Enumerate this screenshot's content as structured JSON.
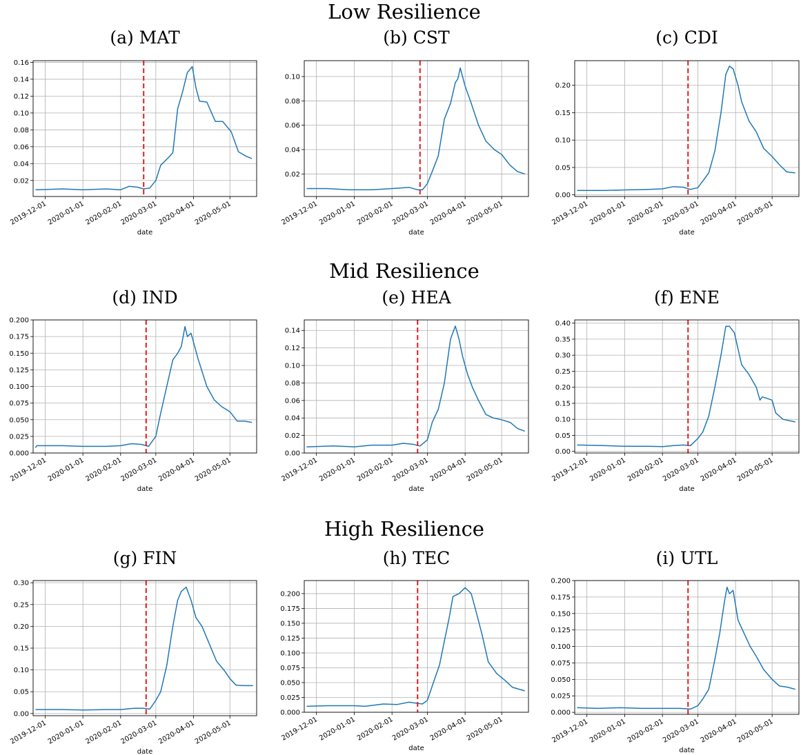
{
  "row_titles": [
    "Low Resilience",
    "Mid Resilience",
    "High Resilience"
  ],
  "colors": {
    "series": "#1f77b4",
    "event_line": "#e41a1c",
    "grid": "#b0b0b0"
  },
  "chart_data": [
    {
      "type": "line",
      "title": "(a) MAT",
      "xlabel": "date",
      "ylabel": "",
      "x_ticks": [
        "2019-12-01",
        "2020-01-01",
        "2020-02-01",
        "2020-03-01",
        "2020-04-01",
        "2020-05-01"
      ],
      "y_ticks": [
        "0.02",
        "0.04",
        "0.06",
        "0.08",
        "0.10",
        "0.12",
        "0.14",
        "0.16"
      ],
      "xlim": [
        "2019-11-21",
        "2020-05-23"
      ],
      "ylim": [
        0.001,
        0.162
      ],
      "grid": true,
      "event_date": "2020-02-20",
      "x": [
        "2019-11-23",
        "2019-12-15",
        "2020-01-01",
        "2020-01-20",
        "2020-02-01",
        "2020-02-08",
        "2020-02-15",
        "2020-02-20",
        "2020-02-25",
        "2020-03-01",
        "2020-03-05",
        "2020-03-12",
        "2020-03-15",
        "2020-03-19",
        "2020-03-23",
        "2020-03-27",
        "2020-03-31",
        "2020-04-03",
        "2020-04-06",
        "2020-04-12",
        "2020-04-19",
        "2020-04-25",
        "2020-05-02",
        "2020-05-08",
        "2020-05-14",
        "2020-05-19"
      ],
      "values": [
        0.009,
        0.01,
        0.009,
        0.01,
        0.009,
        0.013,
        0.012,
        0.01,
        0.011,
        0.02,
        0.038,
        0.048,
        0.053,
        0.105,
        0.125,
        0.148,
        0.155,
        0.13,
        0.114,
        0.113,
        0.09,
        0.09,
        0.078,
        0.054,
        0.049,
        0.046
      ]
    },
    {
      "type": "line",
      "title": "(b) CST",
      "xlabel": "date",
      "ylabel": "",
      "x_ticks": [
        "2019-12-01",
        "2020-01-01",
        "2020-02-01",
        "2020-03-01",
        "2020-04-01",
        "2020-05-01"
      ],
      "y_ticks": [
        "0.02",
        "0.04",
        "0.06",
        "0.08",
        "0.10"
      ],
      "xlim": [
        "2019-11-21",
        "2020-05-23"
      ],
      "ylim": [
        0.0015,
        0.113
      ],
      "grid": true,
      "event_date": "2020-02-24",
      "x": [
        "2019-11-23",
        "2019-12-10",
        "2019-12-28",
        "2020-01-15",
        "2020-02-01",
        "2020-02-15",
        "2020-02-22",
        "2020-02-26",
        "2020-03-01",
        "2020-03-05",
        "2020-03-10",
        "2020-03-15",
        "2020-03-20",
        "2020-03-24",
        "2020-03-26",
        "2020-03-28",
        "2020-04-01",
        "2020-04-06",
        "2020-04-12",
        "2020-04-18",
        "2020-04-25",
        "2020-05-01",
        "2020-05-08",
        "2020-05-14",
        "2020-05-20"
      ],
      "values": [
        0.008,
        0.008,
        0.007,
        0.007,
        0.008,
        0.009,
        0.007,
        0.007,
        0.012,
        0.022,
        0.035,
        0.065,
        0.078,
        0.095,
        0.098,
        0.107,
        0.092,
        0.078,
        0.06,
        0.047,
        0.04,
        0.036,
        0.027,
        0.022,
        0.02
      ]
    },
    {
      "type": "line",
      "title": "(c) CDI",
      "xlabel": "date",
      "ylabel": "",
      "x_ticks": [
        "2019-12-01",
        "2020-01-01",
        "2020-02-01",
        "2020-03-01",
        "2020-04-01",
        "2020-05-01"
      ],
      "y_ticks": [
        "0.00",
        "0.05",
        "0.10",
        "0.15",
        "0.20"
      ],
      "xlim": [
        "2019-11-21",
        "2020-05-23"
      ],
      "ylim": [
        -0.003,
        0.245
      ],
      "grid": true,
      "event_date": "2020-02-22",
      "x": [
        "2019-11-23",
        "2019-12-15",
        "2020-01-01",
        "2020-01-20",
        "2020-02-01",
        "2020-02-10",
        "2020-02-18",
        "2020-02-24",
        "2020-03-01",
        "2020-03-05",
        "2020-03-10",
        "2020-03-15",
        "2020-03-20",
        "2020-03-24",
        "2020-03-27",
        "2020-03-30",
        "2020-04-03",
        "2020-04-06",
        "2020-04-12",
        "2020-04-18",
        "2020-04-24",
        "2020-05-01",
        "2020-05-07",
        "2020-05-13",
        "2020-05-20"
      ],
      "values": [
        0.008,
        0.008,
        0.009,
        0.01,
        0.011,
        0.015,
        0.014,
        0.01,
        0.013,
        0.025,
        0.04,
        0.08,
        0.15,
        0.22,
        0.235,
        0.23,
        0.2,
        0.17,
        0.135,
        0.115,
        0.085,
        0.07,
        0.055,
        0.042,
        0.04
      ]
    },
    {
      "type": "line",
      "title": "(d) IND",
      "xlabel": "date",
      "ylabel": "",
      "x_ticks": [
        "2019-12-01",
        "2020-01-01",
        "2020-02-01",
        "2020-03-01",
        "2020-04-01",
        "2020-05-01"
      ],
      "y_ticks": [
        "0.000",
        "0.025",
        "0.050",
        "0.075",
        "0.100",
        "0.125",
        "0.150",
        "0.175",
        "0.200"
      ],
      "xlim": [
        "2019-11-21",
        "2020-05-23"
      ],
      "ylim": [
        0.0,
        0.2
      ],
      "grid": true,
      "event_date": "2020-02-22",
      "x": [
        "2019-11-23",
        "2019-11-24",
        "2019-12-15",
        "2020-01-01",
        "2020-01-20",
        "2020-02-01",
        "2020-02-10",
        "2020-02-18",
        "2020-02-24",
        "2020-03-01",
        "2020-03-05",
        "2020-03-10",
        "2020-03-15",
        "2020-03-19",
        "2020-03-22",
        "2020-03-25",
        "2020-03-27",
        "2020-03-30",
        "2020-04-05",
        "2020-04-12",
        "2020-04-18",
        "2020-04-24",
        "2020-05-01",
        "2020-05-07",
        "2020-05-13",
        "2020-05-19"
      ],
      "values": [
        0.008,
        0.011,
        0.011,
        0.01,
        0.01,
        0.011,
        0.014,
        0.013,
        0.01,
        0.025,
        0.06,
        0.1,
        0.14,
        0.15,
        0.16,
        0.19,
        0.175,
        0.18,
        0.14,
        0.1,
        0.08,
        0.07,
        0.062,
        0.048,
        0.048,
        0.046
      ]
    },
    {
      "type": "line",
      "title": "(e) HEA",
      "xlabel": "date",
      "ylabel": "",
      "x_ticks": [
        "2019-12-01",
        "2020-01-01",
        "2020-02-01",
        "2020-03-01",
        "2020-04-01",
        "2020-05-01"
      ],
      "y_ticks": [
        "0.00",
        "0.02",
        "0.04",
        "0.06",
        "0.08",
        "0.10",
        "0.12",
        "0.14"
      ],
      "xlim": [
        "2019-11-21",
        "2020-05-23"
      ],
      "ylim": [
        0.0,
        0.152
      ],
      "grid": true,
      "event_date": "2020-02-22",
      "x": [
        "2019-11-23",
        "2019-12-15",
        "2020-01-01",
        "2020-01-15",
        "2020-02-01",
        "2020-02-10",
        "2020-02-18",
        "2020-02-24",
        "2020-03-01",
        "2020-03-05",
        "2020-03-10",
        "2020-03-15",
        "2020-03-20",
        "2020-03-24",
        "2020-03-27",
        "2020-03-30",
        "2020-04-03",
        "2020-04-07",
        "2020-04-12",
        "2020-04-18",
        "2020-04-24",
        "2020-05-01",
        "2020-05-08",
        "2020-05-14",
        "2020-05-20"
      ],
      "values": [
        0.007,
        0.008,
        0.007,
        0.009,
        0.009,
        0.011,
        0.01,
        0.008,
        0.015,
        0.035,
        0.05,
        0.08,
        0.13,
        0.145,
        0.13,
        0.11,
        0.09,
        0.075,
        0.06,
        0.044,
        0.04,
        0.038,
        0.035,
        0.028,
        0.025
      ]
    },
    {
      "type": "line",
      "title": "(f) ENE",
      "xlabel": "date",
      "ylabel": "",
      "x_ticks": [
        "2019-12-01",
        "2020-01-01",
        "2020-02-01",
        "2020-03-01",
        "2020-04-01",
        "2020-05-01"
      ],
      "y_ticks": [
        "0.00",
        "0.05",
        "0.10",
        "0.15",
        "0.20",
        "0.25",
        "0.30",
        "0.35",
        "0.40"
      ],
      "xlim": [
        "2019-11-21",
        "2020-05-23"
      ],
      "ylim": [
        -0.005,
        0.41
      ],
      "grid": true,
      "event_date": "2020-02-22",
      "x": [
        "2019-11-23",
        "2019-12-15",
        "2020-01-01",
        "2020-01-20",
        "2020-02-01",
        "2020-02-10",
        "2020-02-18",
        "2020-02-24",
        "2020-03-01",
        "2020-03-05",
        "2020-03-10",
        "2020-03-15",
        "2020-03-20",
        "2020-03-24",
        "2020-03-27",
        "2020-03-31",
        "2020-04-03",
        "2020-04-06",
        "2020-04-12",
        "2020-04-18",
        "2020-04-21",
        "2020-04-23",
        "2020-05-01",
        "2020-05-04",
        "2020-05-10",
        "2020-05-20"
      ],
      "values": [
        0.02,
        0.018,
        0.016,
        0.016,
        0.015,
        0.018,
        0.02,
        0.018,
        0.04,
        0.06,
        0.11,
        0.2,
        0.3,
        0.39,
        0.39,
        0.37,
        0.32,
        0.27,
        0.24,
        0.2,
        0.16,
        0.17,
        0.16,
        0.12,
        0.1,
        0.092
      ]
    },
    {
      "type": "line",
      "title": "(g) FIN",
      "xlabel": "date",
      "ylabel": "",
      "x_ticks": [
        "2019-12-01",
        "2020-01-01",
        "2020-02-01",
        "2020-03-01",
        "2020-04-01",
        "2020-05-01"
      ],
      "y_ticks": [
        "0.00",
        "0.05",
        "0.10",
        "0.15",
        "0.20",
        "0.25",
        "0.30"
      ],
      "xlim": [
        "2019-11-21",
        "2020-05-23"
      ],
      "ylim": [
        -0.005,
        0.305
      ],
      "grid": true,
      "event_date": "2020-02-22",
      "x": [
        "2019-11-23",
        "2019-12-15",
        "2020-01-01",
        "2020-01-20",
        "2020-02-01",
        "2020-02-12",
        "2020-02-20",
        "2020-02-25",
        "2020-03-01",
        "2020-03-05",
        "2020-03-10",
        "2020-03-15",
        "2020-03-19",
        "2020-03-22",
        "2020-03-26",
        "2020-03-30",
        "2020-04-03",
        "2020-04-08",
        "2020-04-14",
        "2020-04-20",
        "2020-04-26",
        "2020-05-01",
        "2020-05-06",
        "2020-05-12",
        "2020-05-20"
      ],
      "values": [
        0.009,
        0.009,
        0.008,
        0.009,
        0.009,
        0.012,
        0.012,
        0.01,
        0.03,
        0.05,
        0.11,
        0.2,
        0.26,
        0.28,
        0.29,
        0.26,
        0.22,
        0.2,
        0.16,
        0.12,
        0.1,
        0.08,
        0.065,
        0.064,
        0.064
      ]
    },
    {
      "type": "line",
      "title": "(h) TEC",
      "xlabel": "date",
      "ylabel": "",
      "x_ticks": [
        "2019-12-01",
        "2020-01-01",
        "2020-02-01",
        "2020-03-01",
        "2020-04-01",
        "2020-05-01"
      ],
      "y_ticks": [
        "0.000",
        "0.025",
        "0.050",
        "0.075",
        "0.100",
        "0.125",
        "0.150",
        "0.175",
        "0.200"
      ],
      "xlim": [
        "2019-11-21",
        "2020-05-23"
      ],
      "ylim": [
        0.0,
        0.222
      ],
      "grid": true,
      "event_date": "2020-02-22",
      "x": [
        "2019-11-23",
        "2019-12-10",
        "2020-01-01",
        "2020-01-10",
        "2020-01-25",
        "2020-02-05",
        "2020-02-15",
        "2020-02-22",
        "2020-02-26",
        "2020-03-01",
        "2020-03-06",
        "2020-03-11",
        "2020-03-15",
        "2020-03-19",
        "2020-03-22",
        "2020-03-27",
        "2020-04-01",
        "2020-04-06",
        "2020-04-10",
        "2020-04-15",
        "2020-04-20",
        "2020-04-27",
        "2020-05-03",
        "2020-05-10",
        "2020-05-20"
      ],
      "values": [
        0.01,
        0.011,
        0.011,
        0.01,
        0.014,
        0.013,
        0.017,
        0.015,
        0.014,
        0.02,
        0.05,
        0.08,
        0.12,
        0.16,
        0.195,
        0.2,
        0.21,
        0.2,
        0.17,
        0.13,
        0.085,
        0.065,
        0.055,
        0.042,
        0.036
      ]
    },
    {
      "type": "line",
      "title": "(i) UTL",
      "xlabel": "date",
      "ylabel": "",
      "x_ticks": [
        "2019-12-01",
        "2020-01-01",
        "2020-02-01",
        "2020-03-01",
        "2020-04-01",
        "2020-05-01"
      ],
      "y_ticks": [
        "0.000",
        "0.025",
        "0.050",
        "0.075",
        "0.100",
        "0.125",
        "0.150",
        "0.175",
        "0.200"
      ],
      "xlim": [
        "2019-11-21",
        "2020-05-23"
      ],
      "ylim": [
        -0.003,
        0.2
      ],
      "grid": true,
      "event_date": "2020-02-22",
      "x": [
        "2019-11-23",
        "2019-12-10",
        "2019-12-28",
        "2020-01-15",
        "2020-02-01",
        "2020-02-15",
        "2020-02-24",
        "2020-03-01",
        "2020-03-05",
        "2020-03-10",
        "2020-03-15",
        "2020-03-19",
        "2020-03-23",
        "2020-03-25",
        "2020-03-27",
        "2020-03-30",
        "2020-04-03",
        "2020-04-08",
        "2020-04-13",
        "2020-04-18",
        "2020-04-24",
        "2020-05-01",
        "2020-05-07",
        "2020-05-14",
        "2020-05-20"
      ],
      "values": [
        0.007,
        0.006,
        0.007,
        0.006,
        0.006,
        0.006,
        0.005,
        0.01,
        0.02,
        0.035,
        0.08,
        0.12,
        0.17,
        0.19,
        0.18,
        0.185,
        0.14,
        0.12,
        0.1,
        0.085,
        0.065,
        0.05,
        0.04,
        0.038,
        0.035
      ]
    }
  ]
}
